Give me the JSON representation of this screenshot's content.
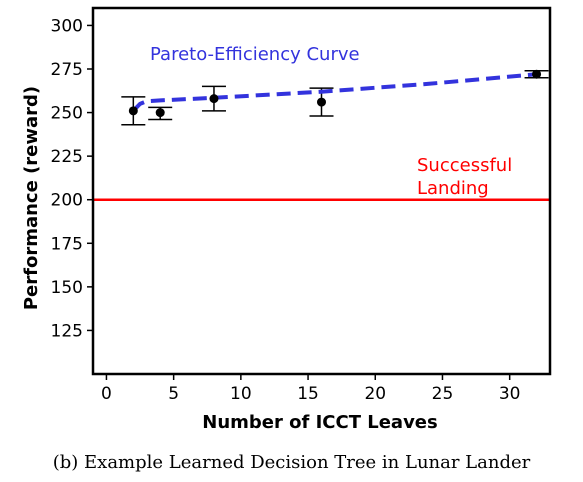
{
  "caption": "(b) Example Learned Decision Tree in Lunar Lander",
  "chart_data": {
    "type": "scatter",
    "xlabel": "Number of ICCT Leaves",
    "ylabel": "Performance (reward)",
    "xlim": [
      -1,
      33
    ],
    "ylim": [
      100,
      310
    ],
    "xticks": [
      0,
      5,
      10,
      15,
      20,
      25,
      30
    ],
    "yticks": [
      125,
      150,
      175,
      200,
      225,
      250,
      275,
      300
    ],
    "grid": false,
    "points": [
      {
        "x": 2,
        "y": 251,
        "err_low": 243,
        "err_high": 259
      },
      {
        "x": 4,
        "y": 250,
        "err_low": 246,
        "err_high": 253
      },
      {
        "x": 8,
        "y": 258,
        "err_low": 251,
        "err_high": 265
      },
      {
        "x": 16,
        "y": 256,
        "err_low": 248,
        "err_high": 264
      },
      {
        "x": 32,
        "y": 272,
        "err_low": 270,
        "err_high": 274
      }
    ],
    "pareto_curve": {
      "label": "Pareto-Efficiency Curve",
      "color": "#3333dd",
      "x": [
        2,
        2.5,
        3,
        4,
        8,
        16,
        24,
        32
      ],
      "y": [
        251,
        255,
        256.5,
        257,
        258.5,
        262,
        266.5,
        272
      ]
    },
    "threshold": {
      "y": 200,
      "label": [
        "Successful",
        "Landing"
      ],
      "color": "#ff0000"
    }
  }
}
